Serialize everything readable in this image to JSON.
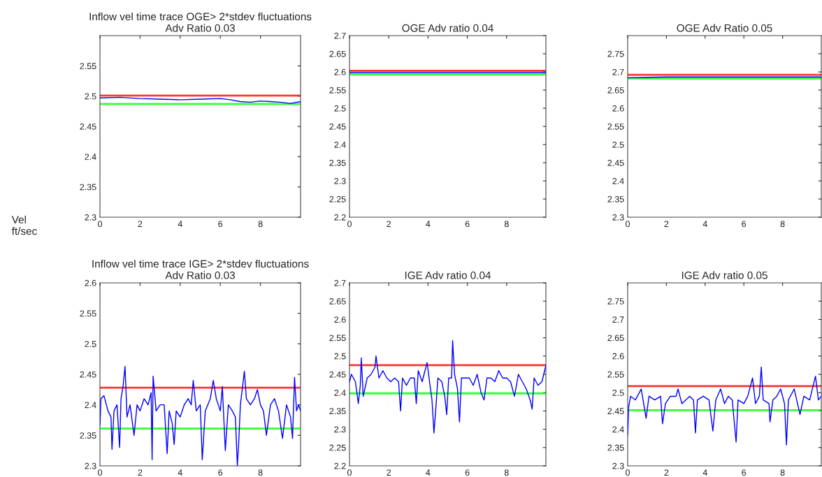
{
  "chart_data": [
    {
      "type": "line",
      "title": "Inflow vel time trace OGE> 2*stdev fluctuations\nAdv Ratio 0.03",
      "ylabel": "Vel\nft/sec",
      "xlim": [
        0,
        10
      ],
      "xticks": [
        0,
        2,
        4,
        6,
        8
      ],
      "ylim": [
        2.3,
        2.6
      ],
      "yticks": [
        2.3,
        2.35,
        2.4,
        2.45,
        2.5,
        2.55
      ],
      "series": [
        {
          "color": "#0000ff",
          "x": [
            0,
            1,
            2,
            3,
            4,
            5,
            6,
            6.5,
            7,
            7.5,
            8,
            8.5,
            9,
            9.5,
            10
          ],
          "values": [
            2.497,
            2.498,
            2.496,
            2.495,
            2.494,
            2.495,
            2.496,
            2.494,
            2.491,
            2.49,
            2.492,
            2.491,
            2.49,
            2.488,
            2.491
          ]
        }
      ],
      "ref_lines": [
        {
          "axis": "y",
          "value": 2.501,
          "color": "#ff0000"
        },
        {
          "axis": "y",
          "value": 2.487,
          "color": "#00ff00"
        }
      ]
    },
    {
      "type": "line",
      "title": "OGE Adv ratio 0.04",
      "xlim": [
        0,
        10
      ],
      "xticks": [
        0,
        2,
        4,
        6,
        8
      ],
      "ylim": [
        2.2,
        2.7
      ],
      "yticks": [
        2.2,
        2.25,
        2.3,
        2.35,
        2.4,
        2.45,
        2.5,
        2.55,
        2.6,
        2.65,
        2.7
      ],
      "series": [
        {
          "color": "#0000ff",
          "x": [
            0,
            2,
            4,
            6,
            8,
            10
          ],
          "values": [
            2.598,
            2.598,
            2.598,
            2.598,
            2.598,
            2.598
          ]
        }
      ],
      "ref_lines": [
        {
          "axis": "y",
          "value": 2.603,
          "color": "#ff0000"
        },
        {
          "axis": "y",
          "value": 2.593,
          "color": "#00ff00"
        }
      ]
    },
    {
      "type": "line",
      "title": "OGE Adv Ratio 0.05",
      "xlim": [
        0,
        10
      ],
      "xticks": [
        0,
        2,
        4,
        6,
        8
      ],
      "ylim": [
        2.3,
        2.8
      ],
      "yticks": [
        2.3,
        2.35,
        2.4,
        2.45,
        2.5,
        2.55,
        2.6,
        2.65,
        2.7,
        2.75
      ],
      "series": [
        {
          "color": "#0000ff",
          "x": [
            0,
            1,
            2,
            5,
            10
          ],
          "values": [
            2.684,
            2.685,
            2.686,
            2.686,
            2.686
          ]
        }
      ],
      "ref_lines": [
        {
          "axis": "y",
          "value": 2.692,
          "color": "#ff0000"
        },
        {
          "axis": "y",
          "value": 2.682,
          "color": "#00ff00"
        }
      ]
    },
    {
      "type": "line",
      "title": "Inflow vel time trace IGE> 2*stdev fluctuations\nAdv Ratio 0.03",
      "xlim": [
        0,
        10
      ],
      "xticks": [
        0,
        2,
        4,
        6,
        8
      ],
      "ylim": [
        2.3,
        2.6
      ],
      "yticks": [
        2.3,
        2.35,
        2.4,
        2.45,
        2.5,
        2.55,
        2.6
      ],
      "series": [
        {
          "color": "#0000ff",
          "x": [
            0,
            0.05,
            0.2,
            0.4,
            0.55,
            0.6,
            0.7,
            0.85,
            0.98,
            1.05,
            1.15,
            1.25,
            1.35,
            1.5,
            1.7,
            1.85,
            2.0,
            2.2,
            2.4,
            2.55,
            2.6,
            2.65,
            2.8,
            3.0,
            3.2,
            3.35,
            3.45,
            3.6,
            3.7,
            3.8,
            4.0,
            4.2,
            4.4,
            4.55,
            4.65,
            4.8,
            5.0,
            5.1,
            5.25,
            5.5,
            5.65,
            5.8,
            6.0,
            6.1,
            6.25,
            6.4,
            6.6,
            6.75,
            6.85,
            6.92,
            7.0,
            7.2,
            7.3,
            7.5,
            7.7,
            7.85,
            8.0,
            8.15,
            8.3,
            8.5,
            8.7,
            8.9,
            9.1,
            9.3,
            9.5,
            9.6,
            9.7,
            9.8,
            9.9,
            10.0
          ],
          "values": [
            2.367,
            2.41,
            2.415,
            2.39,
            2.38,
            2.327,
            2.39,
            2.4,
            2.33,
            2.41,
            2.43,
            2.463,
            2.38,
            2.4,
            2.35,
            2.4,
            2.39,
            2.41,
            2.4,
            2.42,
            2.31,
            2.447,
            2.39,
            2.4,
            2.4,
            2.32,
            2.39,
            2.37,
            2.335,
            2.39,
            2.38,
            2.4,
            2.41,
            2.4,
            2.44,
            2.39,
            2.4,
            2.31,
            2.39,
            2.41,
            2.44,
            2.41,
            2.39,
            2.43,
            2.325,
            2.4,
            2.39,
            2.38,
            2.3,
            2.34,
            2.4,
            2.455,
            2.41,
            2.4,
            2.41,
            2.425,
            2.4,
            2.39,
            2.35,
            2.4,
            2.41,
            2.39,
            2.345,
            2.4,
            2.38,
            2.345,
            2.445,
            2.39,
            2.4,
            2.39
          ]
        }
      ],
      "ref_lines": [
        {
          "axis": "y",
          "value": 2.428,
          "color": "#ff0000"
        },
        {
          "axis": "y",
          "value": 2.361,
          "color": "#00ff00"
        }
      ]
    },
    {
      "type": "line",
      "title": "IGE Adv ratio 0.04",
      "xlim": [
        0,
        10
      ],
      "xticks": [
        0,
        2,
        4,
        6,
        8
      ],
      "ylim": [
        2.2,
        2.7
      ],
      "yticks": [
        2.2,
        2.25,
        2.3,
        2.35,
        2.4,
        2.45,
        2.5,
        2.55,
        2.6,
        2.65,
        2.7
      ],
      "series": [
        {
          "color": "#0000ff",
          "x": [
            0,
            0.1,
            0.3,
            0.45,
            0.55,
            0.6,
            0.7,
            0.9,
            1.1,
            1.3,
            1.35,
            1.5,
            1.7,
            1.9,
            2.1,
            2.3,
            2.5,
            2.6,
            2.7,
            2.9,
            3.1,
            3.3,
            3.4,
            3.5,
            3.7,
            3.95,
            4.1,
            4.2,
            4.3,
            4.4,
            4.5,
            4.7,
            4.85,
            4.95,
            5.05,
            5.2,
            5.25,
            5.35,
            5.5,
            5.6,
            5.7,
            5.9,
            6.1,
            6.3,
            6.5,
            6.7,
            6.85,
            7.0,
            7.2,
            7.4,
            7.6,
            7.8,
            8.0,
            8.2,
            8.4,
            8.6,
            8.8,
            9.0,
            9.2,
            9.3,
            9.4,
            9.6,
            9.8,
            10.0
          ],
          "values": [
            2.43,
            2.45,
            2.43,
            2.37,
            2.42,
            2.495,
            2.39,
            2.44,
            2.45,
            2.47,
            2.5,
            2.44,
            2.46,
            2.44,
            2.43,
            2.44,
            2.43,
            2.35,
            2.44,
            2.42,
            2.44,
            2.44,
            2.37,
            2.46,
            2.43,
            2.482,
            2.42,
            2.38,
            2.29,
            2.36,
            2.44,
            2.43,
            2.39,
            2.34,
            2.44,
            2.44,
            2.542,
            2.45,
            2.41,
            2.32,
            2.44,
            2.44,
            2.44,
            2.42,
            2.45,
            2.4,
            2.38,
            2.44,
            2.44,
            2.43,
            2.46,
            2.44,
            2.44,
            2.43,
            2.39,
            2.45,
            2.43,
            2.41,
            2.38,
            2.355,
            2.44,
            2.42,
            2.43,
            2.475
          ]
        }
      ],
      "ref_lines": [
        {
          "axis": "y",
          "value": 2.475,
          "color": "#ff0000"
        },
        {
          "axis": "y",
          "value": 2.398,
          "color": "#00ff00"
        }
      ]
    },
    {
      "type": "line",
      "title": "IGE Adv ratio 0.05",
      "xlim": [
        0,
        10
      ],
      "xticks": [
        0,
        2,
        4,
        6,
        8
      ],
      "ylim": [
        2.3,
        2.8
      ],
      "yticks": [
        2.3,
        2.35,
        2.4,
        2.45,
        2.5,
        2.55,
        2.6,
        2.65,
        2.7,
        2.75
      ],
      "series": [
        {
          "color": "#0000ff",
          "x": [
            0,
            0.05,
            0.15,
            0.4,
            0.7,
            0.95,
            1.1,
            1.4,
            1.7,
            1.8,
            1.95,
            2.2,
            2.5,
            2.6,
            2.8,
            3.0,
            3.2,
            3.4,
            3.5,
            3.6,
            3.9,
            4.2,
            4.4,
            4.55,
            4.8,
            5.0,
            5.2,
            5.4,
            5.6,
            5.7,
            6.0,
            6.2,
            6.45,
            6.6,
            6.8,
            6.9,
            7.0,
            7.3,
            7.35,
            7.5,
            7.7,
            7.9,
            8.1,
            8.2,
            8.3,
            8.6,
            8.9,
            9.1,
            9.4,
            9.7,
            9.85,
            10.0
          ],
          "values": [
            2.385,
            2.46,
            2.49,
            2.48,
            2.51,
            2.43,
            2.49,
            2.48,
            2.49,
            2.415,
            2.47,
            2.49,
            2.49,
            2.51,
            2.47,
            2.48,
            2.49,
            2.48,
            2.39,
            2.48,
            2.49,
            2.48,
            2.395,
            2.48,
            2.51,
            2.47,
            2.49,
            2.48,
            2.365,
            2.48,
            2.47,
            2.49,
            2.54,
            2.47,
            2.49,
            2.57,
            2.48,
            2.47,
            2.42,
            2.48,
            2.49,
            2.51,
            2.47,
            2.357,
            2.48,
            2.51,
            2.44,
            2.49,
            2.48,
            2.545,
            2.48,
            2.49
          ]
        }
      ],
      "ref_lines": [
        {
          "axis": "y",
          "value": 2.518,
          "color": "#ff0000"
        },
        {
          "axis": "y",
          "value": 2.452,
          "color": "#00ff00"
        }
      ]
    }
  ]
}
